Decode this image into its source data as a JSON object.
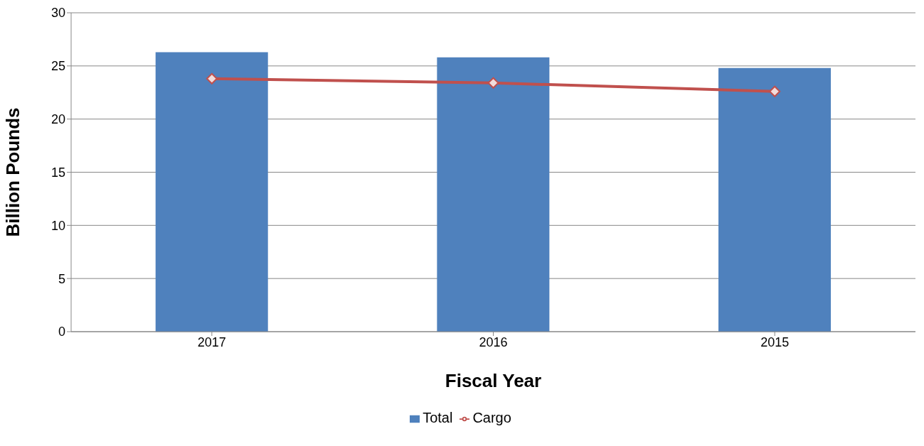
{
  "chart_data": {
    "type": "bar",
    "xlabel": "Fiscal Year",
    "ylabel": "Billion Pounds",
    "categories": [
      "2017",
      "2016",
      "2015"
    ],
    "series": [
      {
        "name": "Total",
        "color": "#4f81bd",
        "values": [
          26.3,
          25.8,
          24.8
        ]
      },
      {
        "name": "Cargo",
        "type": "line",
        "color": "#c0504d",
        "values": [
          23.8,
          23.4,
          22.6
        ],
        "marker": "diamond"
      }
    ],
    "ylim": [
      0,
      30
    ],
    "yticks": [
      0,
      5,
      10,
      15,
      20,
      25,
      30
    ],
    "grid": "y",
    "legend": "bottom"
  }
}
